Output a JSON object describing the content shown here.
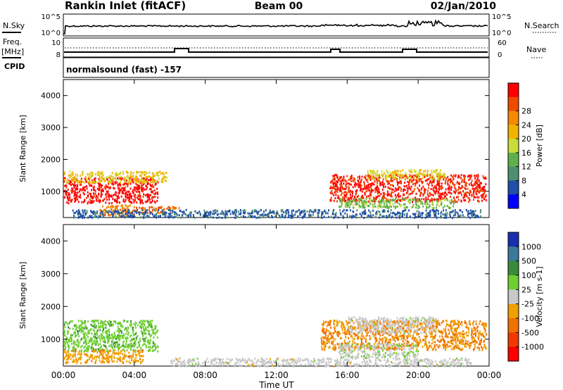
{
  "header": {
    "station": "Rankin Inlet (fitACF)",
    "beam": "Beam 00",
    "date": "02/Jan/2010"
  },
  "top_panels": {
    "nsky_label": "N.Sky",
    "nsky_ticks": [
      "10^5",
      "10^0"
    ],
    "nsearch_label": "N.Search",
    "nsearch_ticks": [
      "10^5",
      "10^0"
    ],
    "freq_label": "Freq.",
    "freq_unit": "[MHz]",
    "freq_ticks": [
      "10",
      "8"
    ],
    "nave_label": "Nave",
    "nave_ticks": [
      "60",
      "0"
    ],
    "cpid_label": "CPID",
    "cpid_text": "normalsound (fast) -157"
  },
  "colors": {
    "power_scale": [
      "#0000ff",
      "#1f4fa8",
      "#4f8f6f",
      "#5fb04a",
      "#c8dd3a",
      "#f2b300",
      "#f58a00",
      "#f04a00",
      "#ff0000"
    ],
    "velocity_scale": [
      "#1a2fb0",
      "#3a7a9a",
      "#3a8a3a",
      "#6ed030",
      "#c8c8c8",
      "#f0a000",
      "#f07000",
      "#f03800",
      "#ff0000"
    ]
  },
  "chart_data": [
    {
      "type": "heatmap",
      "title": "Power",
      "ylabel": "Slant Range [km]",
      "xlabel": "Time UT",
      "x_ticks": [
        "00:00",
        "04:00",
        "08:00",
        "12:00",
        "16:00",
        "20:00",
        "00:00"
      ],
      "y_ticks": [
        "1000",
        "2000",
        "3000",
        "4000"
      ],
      "ylim": [
        180,
        4500
      ],
      "colorbar": {
        "label": "Power [dB]",
        "ticks": [
          "4",
          "8",
          "12",
          "16",
          "20",
          "24",
          "28"
        ],
        "range": [
          0,
          31
        ]
      },
      "regions": [
        {
          "t0": 0.0,
          "t1": 5.3,
          "r0": 650,
          "r1": 1450,
          "value": 29
        },
        {
          "t0": 0.0,
          "t1": 5.8,
          "r0": 1300,
          "r1": 1650,
          "value": 18
        },
        {
          "t0": 2.0,
          "t1": 4.0,
          "r0": 250,
          "r1": 600,
          "value": 23
        },
        {
          "t0": 4.0,
          "t1": 6.5,
          "r0": 350,
          "r1": 550,
          "value": 25
        },
        {
          "t0": 15.0,
          "t1": 23.8,
          "r0": 700,
          "r1": 1550,
          "value": 28
        },
        {
          "t0": 17.0,
          "t1": 21.5,
          "r0": 1400,
          "r1": 1700,
          "value": 17
        },
        {
          "t0": 15.5,
          "t1": 22.0,
          "r0": 500,
          "r1": 800,
          "value": 13
        },
        {
          "t0": 0.5,
          "t1": 23.5,
          "r0": 200,
          "r1": 450,
          "value": 6
        }
      ]
    },
    {
      "type": "heatmap",
      "title": "Velocity",
      "ylabel": "Slant Range [km]",
      "xlabel": "Time UT",
      "x_ticks": [
        "00:00",
        "04:00",
        "08:00",
        "12:00",
        "16:00",
        "20:00",
        "00:00"
      ],
      "y_ticks": [
        "1000",
        "2000",
        "3000",
        "4000"
      ],
      "ylim": [
        180,
        4500
      ],
      "colorbar": {
        "label": "Velocity [m s-1]",
        "ticks": [
          "1000",
          "500",
          "100",
          "25",
          "-25",
          "-100",
          "-500",
          "-1000"
        ],
        "range": [
          -1200,
          1200
        ]
      },
      "regions": [
        {
          "t0": 0.0,
          "t1": 5.3,
          "r0": 650,
          "r1": 1600,
          "value": 300
        },
        {
          "t0": 0.0,
          "t1": 4.5,
          "r0": 300,
          "r1": 700,
          "value": -300
        },
        {
          "t0": 14.5,
          "t1": 23.8,
          "r0": 700,
          "r1": 1600,
          "value": -400
        },
        {
          "t0": 16.0,
          "t1": 21.0,
          "r0": 1200,
          "r1": 1700,
          "value": 0
        },
        {
          "t0": 15.5,
          "t1": 20.0,
          "r0": 450,
          "r1": 900,
          "value": 80
        },
        {
          "t0": 6.0,
          "t1": 23.0,
          "r0": 200,
          "r1": 450,
          "value": 0
        }
      ]
    }
  ]
}
